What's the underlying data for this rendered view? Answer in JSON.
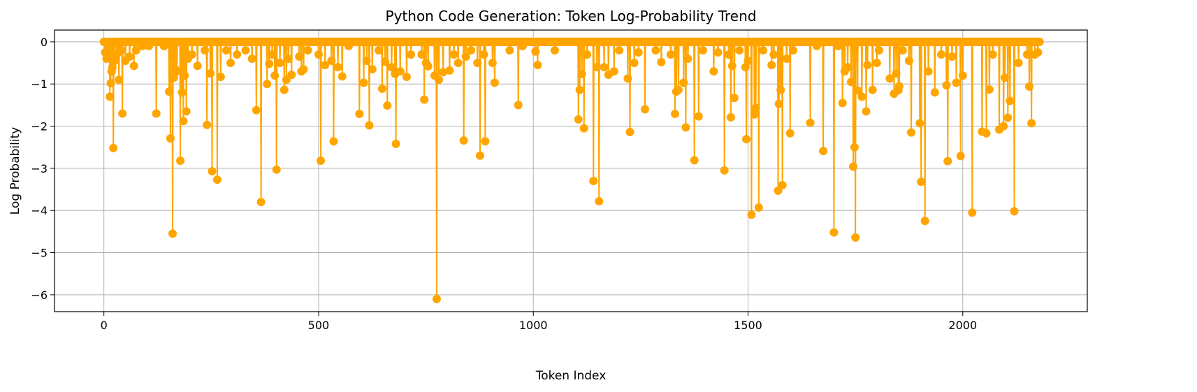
{
  "chart_data": {
    "type": "line",
    "title": "Python Code Generation: Token Log-Probability Trend",
    "xlabel": "Token Index",
    "ylabel": "Log Probability",
    "xlim": [
      -115,
      2290
    ],
    "ylim": [
      -6.4,
      0.28
    ],
    "xticks": [
      0,
      500,
      1000,
      1500,
      2000
    ],
    "xtick_labels": [
      "0",
      "500",
      "1000",
      "1500",
      "2000"
    ],
    "yticks": [
      0,
      -1,
      -2,
      -3,
      -4,
      -5,
      -6
    ],
    "ytick_labels": [
      "0",
      "−1",
      "−2",
      "−3",
      "−4",
      "−5",
      "−6"
    ],
    "grid": true,
    "marker": "circle",
    "color": "#ffa500",
    "n_tokens": 2180,
    "series": [
      {
        "x_start": 0,
        "x_end": 2179,
        "baseline": 0,
        "dips": [
          [
            3,
            -0.25
          ],
          [
            6,
            -0.4
          ],
          [
            10,
            -0.3
          ],
          [
            14,
            -1.3
          ],
          [
            16,
            -0.98
          ],
          [
            18,
            -0.7
          ],
          [
            20,
            -0.6
          ],
          [
            22,
            -2.52
          ],
          [
            25,
            -0.45
          ],
          [
            30,
            -0.3
          ],
          [
            35,
            -0.9
          ],
          [
            40,
            -0.2
          ],
          [
            43,
            -1.7
          ],
          [
            50,
            -0.45
          ],
          [
            60,
            -0.35
          ],
          [
            70,
            -0.57
          ],
          [
            75,
            -0.2
          ],
          [
            90,
            -0.1
          ],
          [
            105,
            -0.1
          ],
          [
            122,
            -1.7
          ],
          [
            140,
            -0.1
          ],
          [
            152,
            -1.18
          ],
          [
            155,
            -2.29
          ],
          [
            160,
            -4.55
          ],
          [
            163,
            -0.85
          ],
          [
            166,
            -0.65
          ],
          [
            170,
            -0.7
          ],
          [
            178,
            -2.82
          ],
          [
            182,
            -1.2
          ],
          [
            185,
            -1.88
          ],
          [
            188,
            -0.8
          ],
          [
            192,
            -1.65
          ],
          [
            196,
            -0.4
          ],
          [
            205,
            -0.3
          ],
          [
            218,
            -0.57
          ],
          [
            235,
            -0.2
          ],
          [
            240,
            -1.97
          ],
          [
            248,
            -0.75
          ],
          [
            252,
            -3.07
          ],
          [
            264,
            -3.27
          ],
          [
            272,
            -0.83
          ],
          [
            285,
            -0.2
          ],
          [
            295,
            -0.5
          ],
          [
            310,
            -0.3
          ],
          [
            330,
            -0.2
          ],
          [
            345,
            -0.4
          ],
          [
            355,
            -1.62
          ],
          [
            366,
            -3.8
          ],
          [
            380,
            -1.0
          ],
          [
            385,
            -0.52
          ],
          [
            392,
            -0.3
          ],
          [
            398,
            -0.8
          ],
          [
            402,
            -3.03
          ],
          [
            410,
            -0.5
          ],
          [
            420,
            -1.14
          ],
          [
            425,
            -0.9
          ],
          [
            430,
            -0.4
          ],
          [
            437,
            -0.78
          ],
          [
            455,
            -0.35
          ],
          [
            460,
            -0.7
          ],
          [
            465,
            -0.65
          ],
          [
            475,
            -0.2
          ],
          [
            500,
            -0.3
          ],
          [
            505,
            -2.82
          ],
          [
            515,
            -0.55
          ],
          [
            530,
            -0.45
          ],
          [
            535,
            -2.36
          ],
          [
            545,
            -0.6
          ],
          [
            555,
            -0.82
          ],
          [
            570,
            -0.1
          ],
          [
            595,
            -1.71
          ],
          [
            605,
            -0.97
          ],
          [
            612,
            -0.45
          ],
          [
            618,
            -1.98
          ],
          [
            625,
            -0.65
          ],
          [
            640,
            -0.2
          ],
          [
            648,
            -1.11
          ],
          [
            655,
            -0.47
          ],
          [
            660,
            -1.51
          ],
          [
            670,
            -0.6
          ],
          [
            678,
            -0.76
          ],
          [
            680,
            -2.42
          ],
          [
            690,
            -0.7
          ],
          [
            705,
            -0.83
          ],
          [
            715,
            -0.3
          ],
          [
            740,
            -0.3
          ],
          [
            746,
            -1.37
          ],
          [
            750,
            -0.5
          ],
          [
            755,
            -0.58
          ],
          [
            770,
            -0.8
          ],
          [
            775,
            -6.1
          ],
          [
            780,
            -0.9
          ],
          [
            790,
            -0.72
          ],
          [
            805,
            -0.68
          ],
          [
            815,
            -0.3
          ],
          [
            825,
            -0.5
          ],
          [
            838,
            -2.34
          ],
          [
            843,
            -0.35
          ],
          [
            855,
            -0.2
          ],
          [
            870,
            -0.5
          ],
          [
            876,
            -2.7
          ],
          [
            885,
            -0.3
          ],
          [
            888,
            -2.36
          ],
          [
            905,
            -0.5
          ],
          [
            910,
            -0.97
          ],
          [
            945,
            -0.2
          ],
          [
            965,
            -1.5
          ],
          [
            975,
            -0.1
          ],
          [
            1005,
            -0.23
          ],
          [
            1010,
            -0.55
          ],
          [
            1050,
            -0.2
          ],
          [
            1105,
            -1.84
          ],
          [
            1108,
            -1.14
          ],
          [
            1113,
            -0.76
          ],
          [
            1118,
            -2.05
          ],
          [
            1125,
            -0.3
          ],
          [
            1140,
            -3.3
          ],
          [
            1148,
            -0.6
          ],
          [
            1153,
            -3.78
          ],
          [
            1165,
            -0.6
          ],
          [
            1175,
            -0.78
          ],
          [
            1188,
            -0.7
          ],
          [
            1200,
            -0.2
          ],
          [
            1220,
            -0.87
          ],
          [
            1225,
            -2.14
          ],
          [
            1235,
            -0.5
          ],
          [
            1245,
            -0.25
          ],
          [
            1260,
            -1.6
          ],
          [
            1285,
            -0.2
          ],
          [
            1298,
            -0.48
          ],
          [
            1320,
            -0.3
          ],
          [
            1330,
            -1.71
          ],
          [
            1333,
            -1.18
          ],
          [
            1338,
            -1.14
          ],
          [
            1350,
            -0.97
          ],
          [
            1355,
            -2.03
          ],
          [
            1360,
            -0.4
          ],
          [
            1375,
            -2.81
          ],
          [
            1385,
            -1.77
          ],
          [
            1395,
            -0.2
          ],
          [
            1420,
            -0.7
          ],
          [
            1430,
            -0.25
          ],
          [
            1445,
            -3.05
          ],
          [
            1455,
            -0.3
          ],
          [
            1460,
            -1.79
          ],
          [
            1463,
            -0.57
          ],
          [
            1468,
            -1.33
          ],
          [
            1480,
            -0.2
          ],
          [
            1494,
            -0.6
          ],
          [
            1496,
            -2.31
          ],
          [
            1500,
            -0.45
          ],
          [
            1508,
            -4.1
          ],
          [
            1515,
            -1.72
          ],
          [
            1518,
            -1.57
          ],
          [
            1525,
            -3.93
          ],
          [
            1535,
            -0.2
          ],
          [
            1555,
            -0.55
          ],
          [
            1560,
            -0.3
          ],
          [
            1570,
            -3.53
          ],
          [
            1572,
            -1.47
          ],
          [
            1576,
            -1.14
          ],
          [
            1580,
            -3.4
          ],
          [
            1590,
            -0.4
          ],
          [
            1598,
            -2.17
          ],
          [
            1605,
            -0.2
          ],
          [
            1645,
            -1.92
          ],
          [
            1660,
            -0.1
          ],
          [
            1675,
            -2.59
          ],
          [
            1700,
            -4.52
          ],
          [
            1710,
            -0.1
          ],
          [
            1720,
            -1.45
          ],
          [
            1725,
            -0.7
          ],
          [
            1732,
            -0.6
          ],
          [
            1740,
            -0.95
          ],
          [
            1745,
            -2.96
          ],
          [
            1748,
            -2.5
          ],
          [
            1750,
            -4.64
          ],
          [
            1755,
            -1.15
          ],
          [
            1765,
            -1.3
          ],
          [
            1775,
            -1.65
          ],
          [
            1778,
            -0.55
          ],
          [
            1790,
            -1.14
          ],
          [
            1800,
            -0.5
          ],
          [
            1805,
            -0.2
          ],
          [
            1830,
            -0.87
          ],
          [
            1840,
            -1.23
          ],
          [
            1845,
            -0.75
          ],
          [
            1850,
            -1.15
          ],
          [
            1852,
            -1.05
          ],
          [
            1860,
            -0.2
          ],
          [
            1875,
            -0.45
          ],
          [
            1880,
            -2.15
          ],
          [
            1900,
            -1.93
          ],
          [
            1903,
            -3.32
          ],
          [
            1912,
            -4.25
          ],
          [
            1920,
            -0.7
          ],
          [
            1935,
            -1.2
          ],
          [
            1950,
            -0.3
          ],
          [
            1962,
            -1.03
          ],
          [
            1965,
            -2.83
          ],
          [
            1975,
            -0.35
          ],
          [
            1985,
            -0.97
          ],
          [
            1995,
            -2.71
          ],
          [
            2000,
            -0.8
          ],
          [
            2022,
            -4.05
          ],
          [
            2045,
            -2.13
          ],
          [
            2055,
            -2.17
          ],
          [
            2062,
            -1.13
          ],
          [
            2070,
            -0.3
          ],
          [
            2085,
            -2.08
          ],
          [
            2095,
            -2.0
          ],
          [
            2098,
            -0.85
          ],
          [
            2105,
            -1.8
          ],
          [
            2110,
            -1.4
          ],
          [
            2120,
            -4.02
          ],
          [
            2130,
            -0.5
          ],
          [
            2150,
            -0.3
          ],
          [
            2155,
            -1.06
          ],
          [
            2160,
            -1.93
          ],
          [
            2168,
            -0.3
          ],
          [
            2175,
            -0.25
          ]
        ]
      }
    ]
  }
}
